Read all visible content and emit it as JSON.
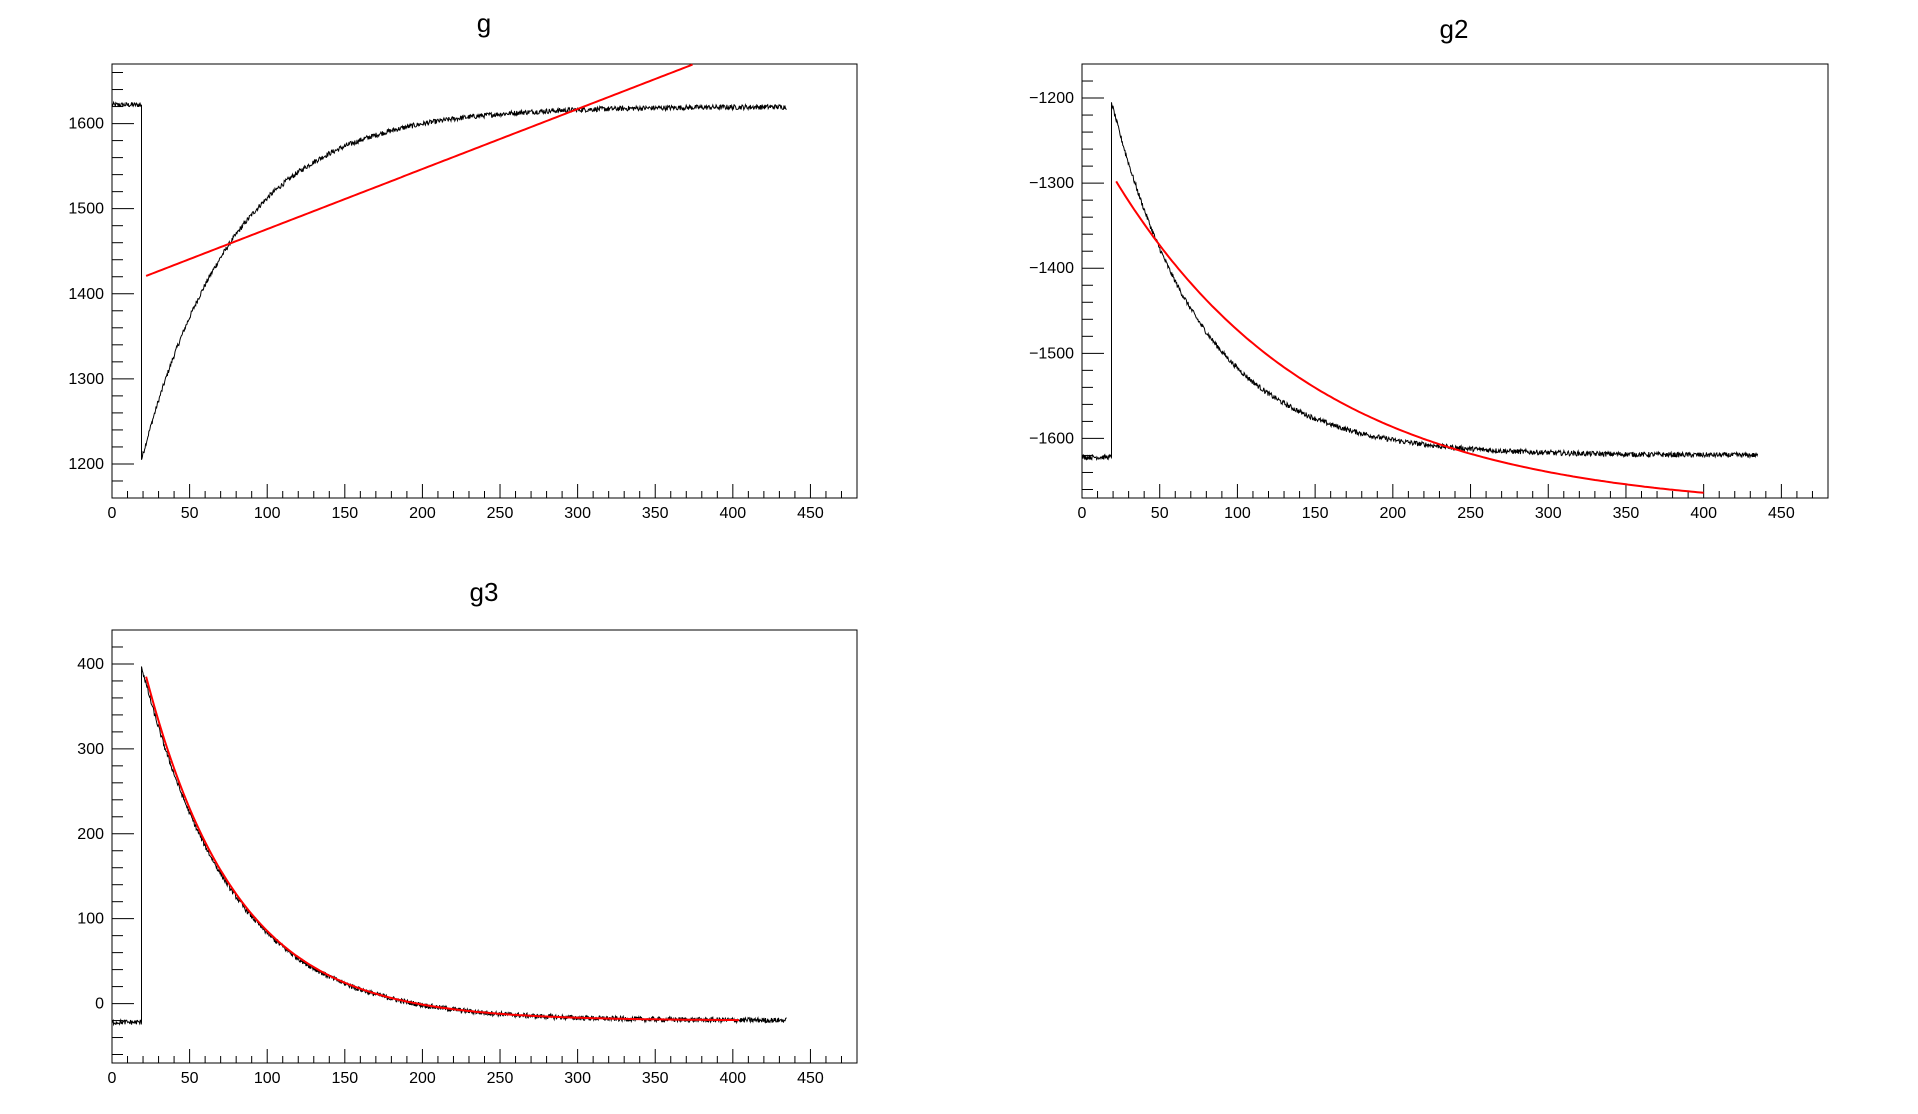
{
  "colors": {
    "data": "#000000",
    "fit": "#ff0000",
    "background": "#ffffff"
  },
  "chart_data": [
    {
      "type": "line",
      "title": "g",
      "xlim": [
        0,
        480
      ],
      "ylim": [
        1160,
        1670
      ],
      "x_ticks": [
        "0",
        "50",
        "100",
        "150",
        "200",
        "250",
        "300",
        "350",
        "400",
        "450"
      ],
      "y_ticks": [
        "1200",
        "1300",
        "1400",
        "1500",
        "1600"
      ],
      "grid": false,
      "series": [
        {
          "role": "data",
          "model": "step_saturating_rise",
          "x_range": [
            0,
            435
          ],
          "step_x": 19,
          "baseline": 1622,
          "start": 1205,
          "plateau": 1620,
          "tau": 60,
          "noise": 3
        },
        {
          "role": "fit",
          "model": "linear",
          "x_range": [
            22,
            375
          ],
          "y_start": 1421,
          "y_end": 1670
        }
      ]
    },
    {
      "type": "line",
      "title": "g2",
      "xlim": [
        0,
        480
      ],
      "ylim": [
        -1670,
        -1160
      ],
      "x_ticks": [
        "0",
        "50",
        "100",
        "150",
        "200",
        "250",
        "300",
        "350",
        "400",
        "450"
      ],
      "y_ticks": [
        "-1200",
        "-1300",
        "-1400",
        "-1500",
        "-1600"
      ],
      "grid": false,
      "series": [
        {
          "role": "data",
          "model": "step_exp_decay",
          "x_range": [
            0,
            435
          ],
          "step_x": 19,
          "baseline": -1622,
          "start": -1205,
          "plateau": -1620,
          "tau": 58,
          "noise": 3
        },
        {
          "role": "fit",
          "model": "exp_decay",
          "x_range": [
            22,
            400
          ],
          "start": -1298,
          "plateau": -1685,
          "tau": 130
        }
      ]
    },
    {
      "type": "line",
      "title": "g3",
      "xlim": [
        0,
        480
      ],
      "ylim": [
        -70,
        440
      ],
      "x_ticks": [
        "0",
        "50",
        "100",
        "150",
        "200",
        "250",
        "300",
        "350",
        "400",
        "450"
      ],
      "y_ticks": [
        "0",
        "100",
        "200",
        "300",
        "400"
      ],
      "grid": false,
      "series": [
        {
          "role": "data",
          "model": "step_exp_decay",
          "x_range": [
            0,
            435
          ],
          "step_x": 19,
          "baseline": -22,
          "start": 397,
          "plateau": -20,
          "tau": 58,
          "noise": 3
        },
        {
          "role": "fit",
          "model": "exp_decay",
          "x_range": [
            22,
            405
          ],
          "start": 385,
          "plateau": -20,
          "tau": 58
        }
      ]
    }
  ]
}
